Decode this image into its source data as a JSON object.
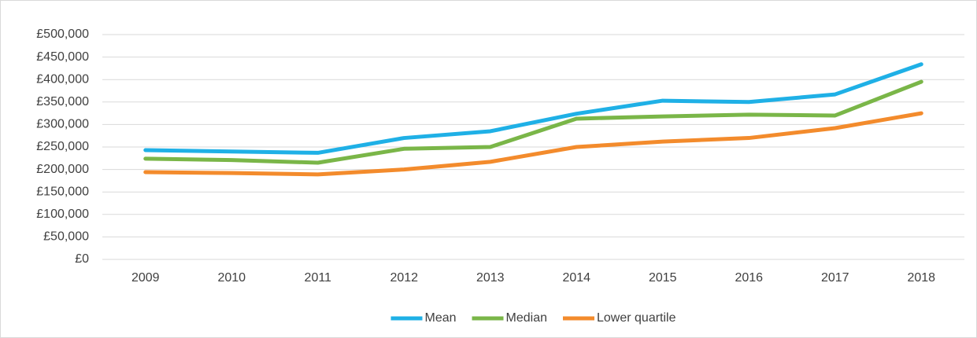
{
  "chart_data": {
    "type": "line",
    "categories": [
      "2009",
      "2010",
      "2011",
      "2012",
      "2013",
      "2014",
      "2015",
      "2016",
      "2017",
      "2018"
    ],
    "series": [
      {
        "name": "Mean",
        "color": "#1fb0e6",
        "values": [
          243000,
          240000,
          237000,
          270000,
          285000,
          324000,
          353000,
          350000,
          367000,
          434000
        ]
      },
      {
        "name": "Median",
        "color": "#7ab648",
        "values": [
          224000,
          221000,
          215000,
          246000,
          250000,
          313000,
          318000,
          322000,
          320000,
          395000
        ]
      },
      {
        "name": "Lower quartile",
        "color": "#f38b2c",
        "values": [
          194000,
          192000,
          189000,
          200000,
          217000,
          250000,
          262000,
          270000,
          292000,
          325000
        ]
      }
    ],
    "ylim": [
      0,
      500000
    ],
    "yticks": [
      {
        "value": 0,
        "label": "£0"
      },
      {
        "value": 50000,
        "label": "£50,000"
      },
      {
        "value": 100000,
        "label": "£100,000"
      },
      {
        "value": 150000,
        "label": "£150,000"
      },
      {
        "value": 200000,
        "label": "£200,000"
      },
      {
        "value": 250000,
        "label": "£250,000"
      },
      {
        "value": 300000,
        "label": "£300,000"
      },
      {
        "value": 350000,
        "label": "£350,000"
      },
      {
        "value": 400000,
        "label": "£400,000"
      },
      {
        "value": 450000,
        "label": "£450,000"
      },
      {
        "value": 500000,
        "label": "£500,000"
      }
    ],
    "grid": true,
    "legend": "bottom"
  }
}
